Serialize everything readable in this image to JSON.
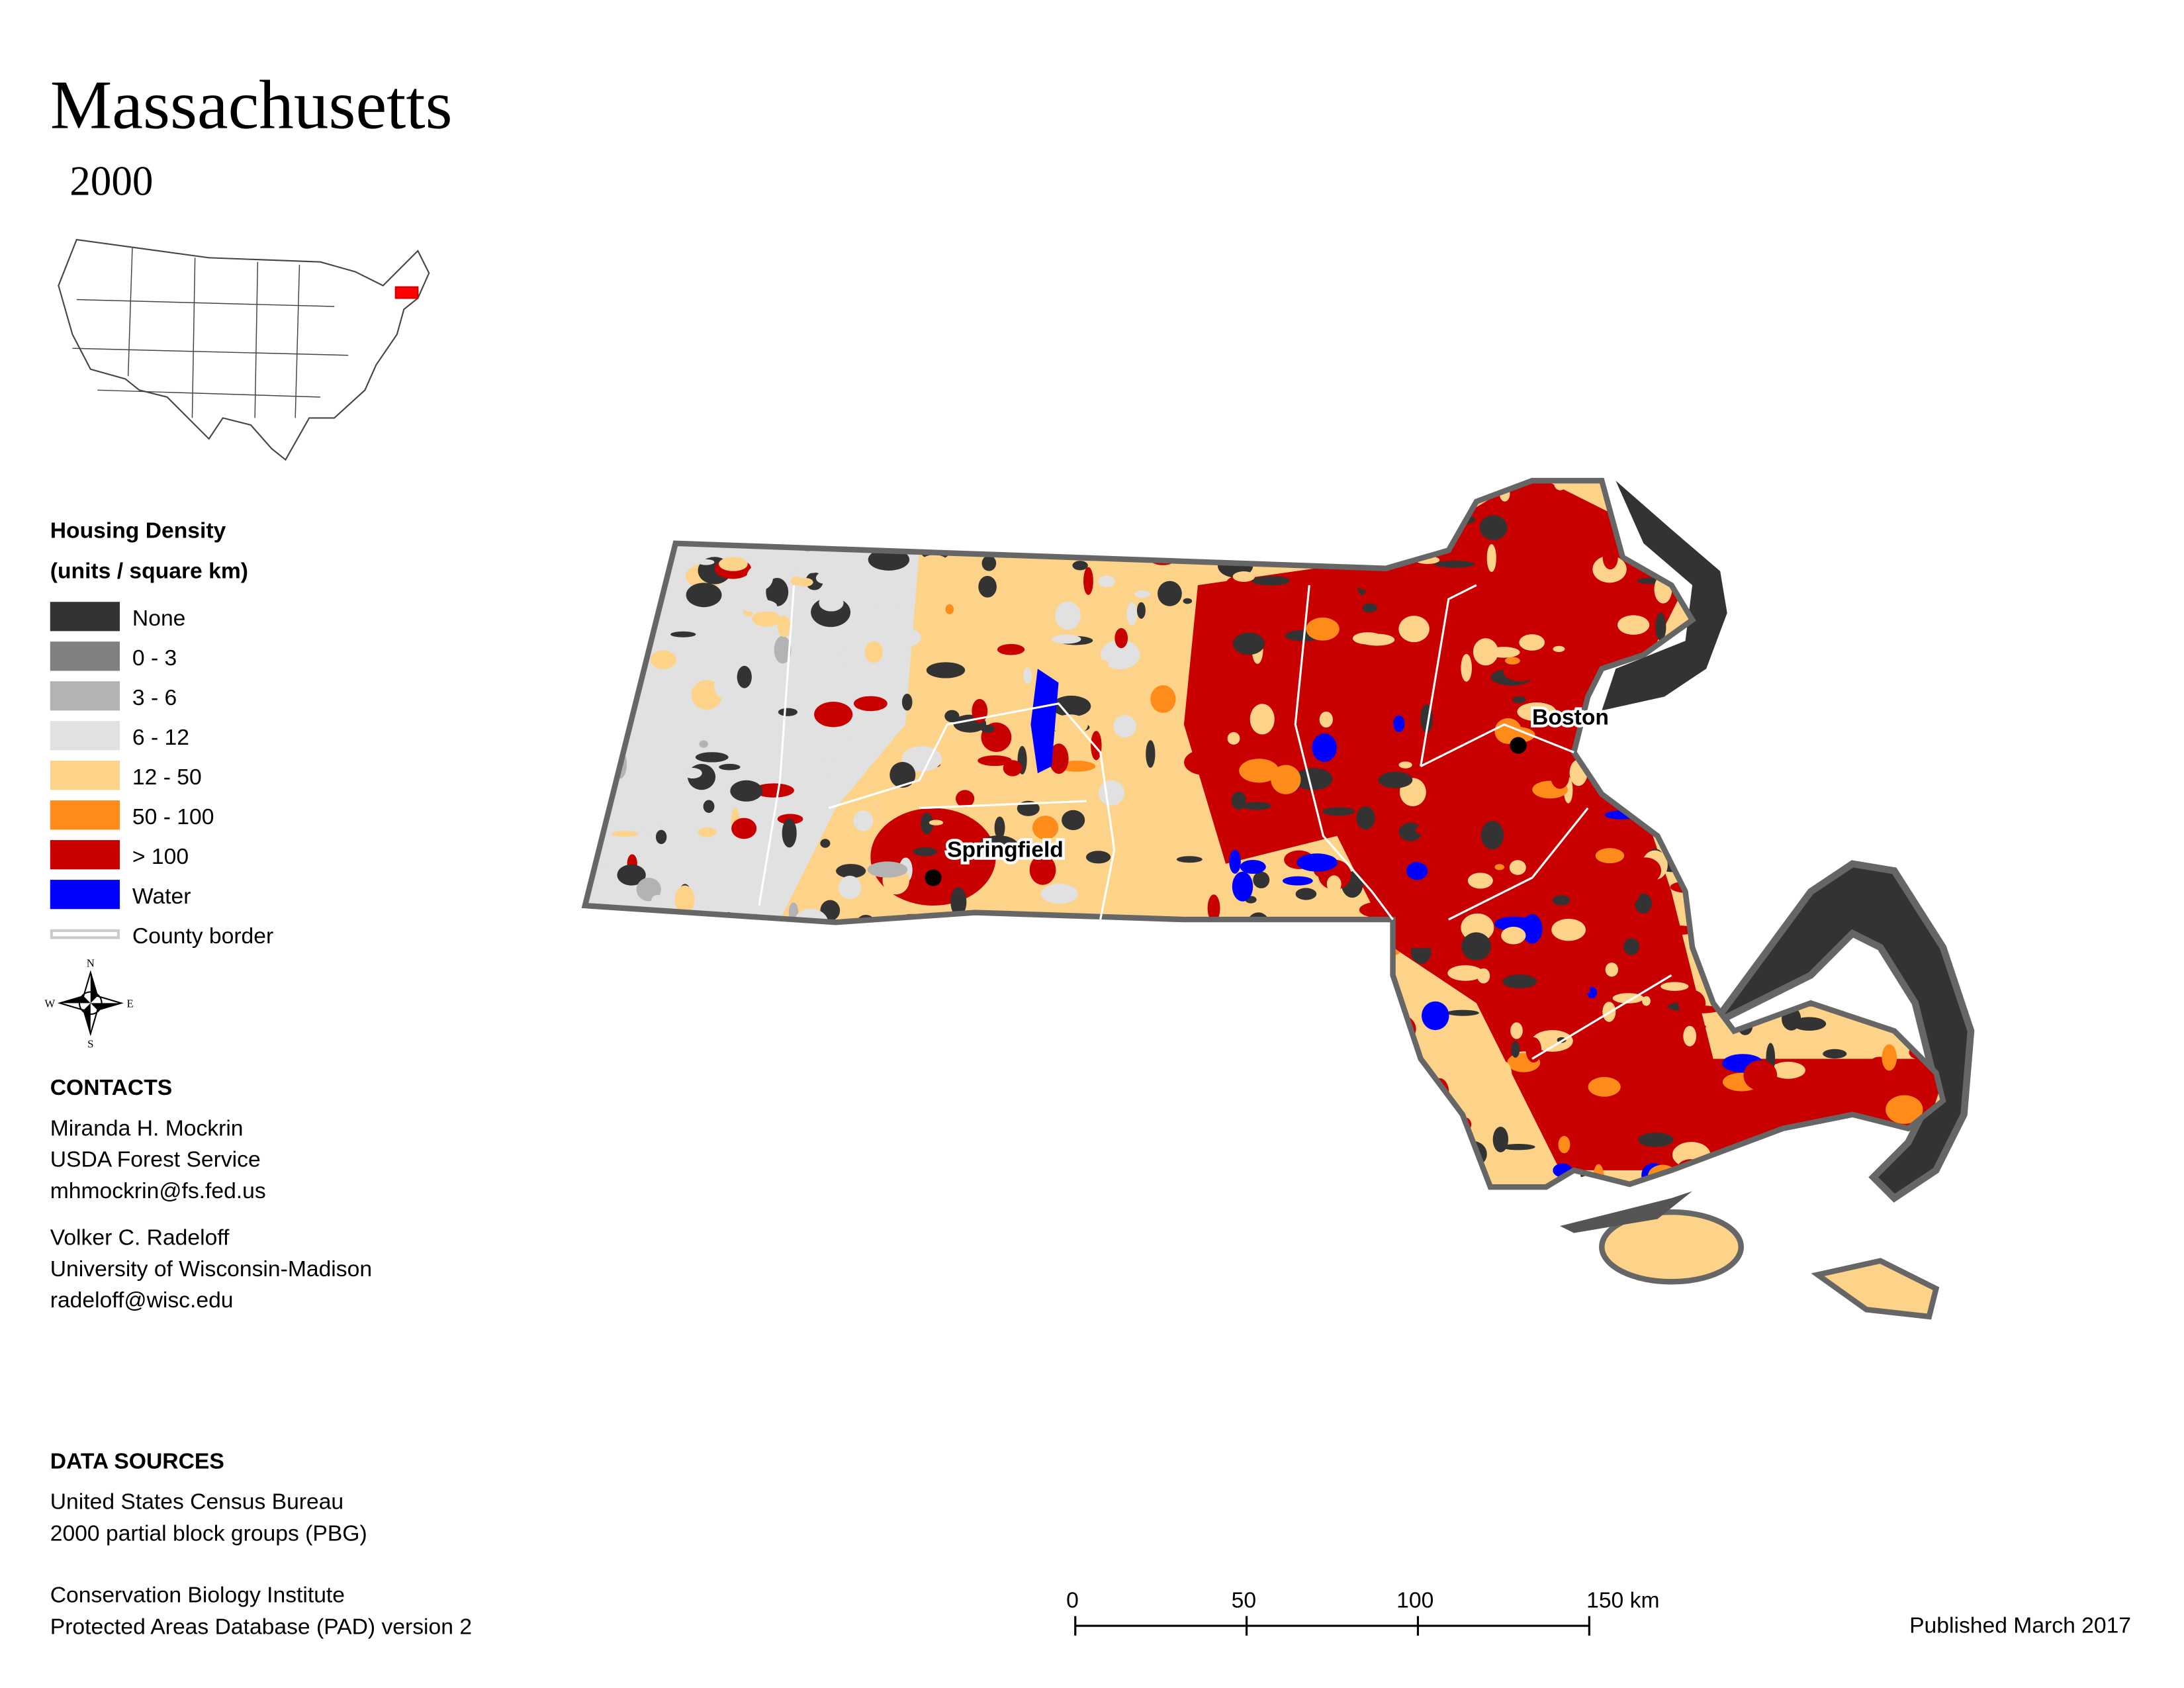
{
  "title": "Massachusetts",
  "subtitle": "2000",
  "legend": {
    "title": "Housing Density",
    "subtitle": "(units / square km)",
    "items": [
      {
        "label": "None",
        "color": "#333333"
      },
      {
        "label": "0 - 3",
        "color": "#808080"
      },
      {
        "label": "3 - 6",
        "color": "#b3b3b3"
      },
      {
        "label": "6 - 12",
        "color": "#e1e1e1"
      },
      {
        "label": "12 - 50",
        "color": "#fdd38a"
      },
      {
        "label": "50 - 100",
        "color": "#ff8c1a"
      },
      {
        "label": "> 100",
        "color": "#c80000"
      },
      {
        "label": "Water",
        "color": "#0000ff"
      },
      {
        "label": "County border",
        "color": "#cccccc"
      }
    ]
  },
  "compass": {
    "n": "N",
    "e": "E",
    "s": "S",
    "w": "W"
  },
  "contacts": {
    "heading": "CONTACTS",
    "people": [
      [
        "Miranda H. Mockrin",
        "USDA Forest Service",
        "mhmockrin@fs.fed.us"
      ],
      [
        "Volker C. Radeloff",
        "University of Wisconsin-Madison",
        "radeloff@wisc.edu"
      ]
    ]
  },
  "data_sources": {
    "heading": "DATA SOURCES",
    "groups": [
      [
        "United States Census Bureau",
        "2000 partial block groups (PBG)"
      ],
      [
        "Conservation Biology Institute",
        "Protected Areas Database (PAD) version 2"
      ]
    ]
  },
  "cities": [
    {
      "name": "Boston"
    },
    {
      "name": "Springfield"
    }
  ],
  "scale_bar": {
    "ticks": [
      0,
      50,
      100,
      {
        "value": 150,
        "label": "150 km"
      }
    ]
  },
  "published": "Published March 2017"
}
